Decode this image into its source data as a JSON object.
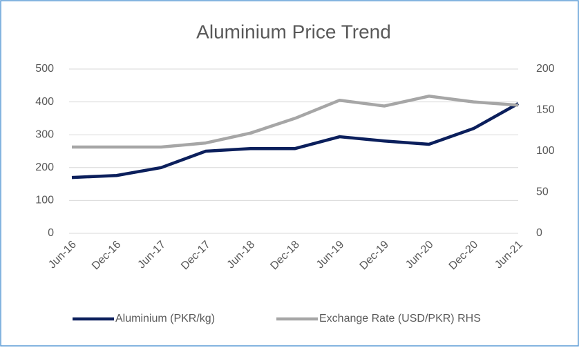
{
  "chart_data": {
    "type": "line",
    "title": "Aluminium Price Trend",
    "categories": [
      "Jun-16",
      "Dec-16",
      "Jun-17",
      "Dec-17",
      "Jun-18",
      "Dec-18",
      "Jun-19",
      "Dec-19",
      "Jun-20",
      "Dec-20",
      "Jun-21"
    ],
    "series": [
      {
        "name": "Aluminium (PKR/kg)",
        "color": "#0b1f5c",
        "values": [
          170,
          176,
          200,
          250,
          258,
          258,
          294,
          281,
          271,
          319,
          395
        ]
      },
      {
        "name": "Exchange Rate (USD/PKR) RHS",
        "color": "#a6a6a6",
        "axis": "y2",
        "values": [
          105,
          105,
          105,
          110,
          122,
          140,
          162,
          155,
          167,
          160,
          156
        ]
      }
    ],
    "ylim": [
      0,
      500
    ],
    "yticks": [
      0,
      100,
      200,
      300,
      400,
      500
    ],
    "y2lim": [
      0,
      200
    ],
    "y2ticks": [
      0,
      50,
      100,
      150,
      200
    ],
    "grid": true,
    "legend": "bottom"
  }
}
